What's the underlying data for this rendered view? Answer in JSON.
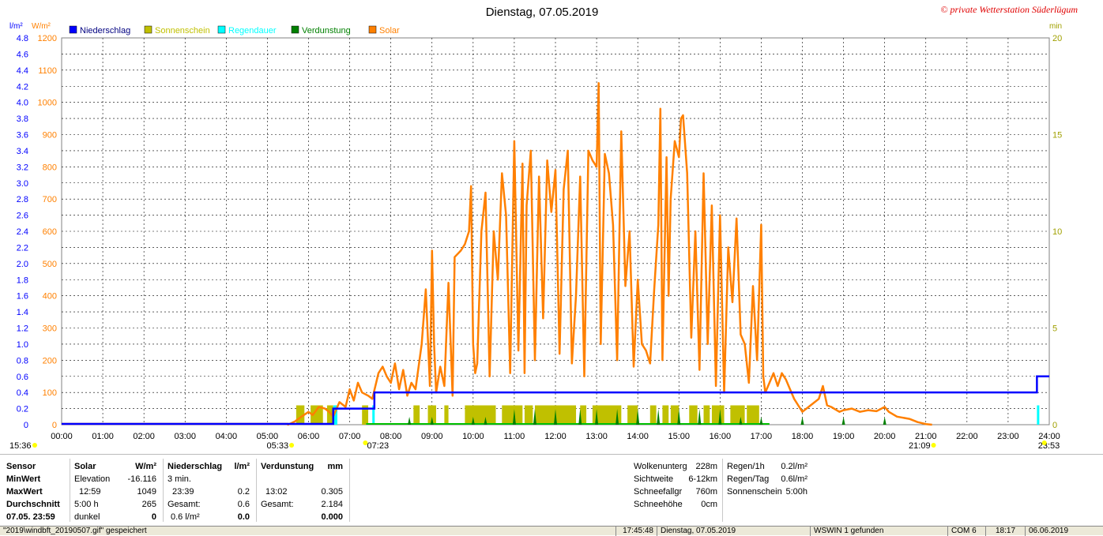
{
  "chart_data": {
    "type": "line",
    "title": "Dienstag, 07.05.2019",
    "copyright": "© private Wetterstation Süderlügum",
    "unit_labels": {
      "left_mm": "l/m²",
      "left_solar": "W/m²",
      "right": "min"
    },
    "left_axis_mm": {
      "min": 0,
      "max": 4.8,
      "ticks": [
        "0",
        "0.2",
        "0.4",
        "0.6",
        "0.8",
        "1.0",
        "1.2",
        "1.4",
        "1.6",
        "1.8",
        "2.0",
        "2.2",
        "2.4",
        "2.6",
        "2.8",
        "3.0",
        "3.2",
        "3.4",
        "3.6",
        "3.8",
        "4.0",
        "4.2",
        "4.4",
        "4.6",
        "4.8"
      ]
    },
    "left_axis_solar": {
      "min": 0,
      "max": 1200,
      "ticks": [
        "0",
        "100",
        "200",
        "300",
        "400",
        "500",
        "600",
        "700",
        "800",
        "900",
        "1000",
        "1100",
        "1200"
      ]
    },
    "right_axis_min": {
      "min": 0,
      "max": 20,
      "ticks": [
        "0",
        "5",
        "10",
        "15",
        "20"
      ]
    },
    "x_ticks": [
      "00:00",
      "01:00",
      "02:00",
      "03:00",
      "04:00",
      "05:00",
      "06:00",
      "07:00",
      "08:00",
      "09:00",
      "10:00",
      "11:00",
      "12:00",
      "13:00",
      "14:00",
      "15:00",
      "16:00",
      "17:00",
      "18:00",
      "19:00",
      "20:00",
      "21:00",
      "22:00",
      "23:00",
      "24:00"
    ],
    "x_annotations": [
      "15:36",
      "05:33",
      "07:23",
      "21:09",
      "23:53"
    ],
    "legend": [
      {
        "name": "Niederschlag",
        "color": "#0000ff"
      },
      {
        "name": "Sonnenschein",
        "color": "#c0c000"
      },
      {
        "name": "Regendauer",
        "color": "#00ffff"
      },
      {
        "name": "Verdunstung",
        "color": "#008000"
      },
      {
        "name": "Solar",
        "color": "#ff8000"
      }
    ],
    "legend_colors": {
      "solar": "#ff8000",
      "rain": "#0000ff",
      "sunshine": "#c0c000",
      "rainDuration": "#00ffff",
      "evap": "#008000",
      "dry": "#00c000"
    },
    "series": [
      {
        "name": "Solar",
        "points": [
          [
            5.5,
            0
          ],
          [
            5.67,
            10
          ],
          [
            5.83,
            25
          ],
          [
            6.0,
            40
          ],
          [
            6.1,
            30
          ],
          [
            6.25,
            55
          ],
          [
            6.4,
            50
          ],
          [
            6.5,
            40
          ],
          [
            6.6,
            25
          ],
          [
            6.75,
            70
          ],
          [
            6.9,
            55
          ],
          [
            7.0,
            110
          ],
          [
            7.1,
            75
          ],
          [
            7.2,
            130
          ],
          [
            7.3,
            100
          ],
          [
            7.45,
            90
          ],
          [
            7.55,
            80
          ],
          [
            7.7,
            160
          ],
          [
            7.8,
            180
          ],
          [
            7.9,
            150
          ],
          [
            8.0,
            130
          ],
          [
            8.1,
            190
          ],
          [
            8.2,
            110
          ],
          [
            8.3,
            170
          ],
          [
            8.4,
            90
          ],
          [
            8.5,
            130
          ],
          [
            8.6,
            110
          ],
          [
            8.75,
            250
          ],
          [
            8.85,
            420
          ],
          [
            8.95,
            120
          ],
          [
            9.0,
            540
          ],
          [
            9.05,
            250
          ],
          [
            9.1,
            100
          ],
          [
            9.2,
            180
          ],
          [
            9.3,
            120
          ],
          [
            9.4,
            440
          ],
          [
            9.5,
            90
          ],
          [
            9.55,
            520
          ],
          [
            9.7,
            540
          ],
          [
            9.8,
            560
          ],
          [
            9.9,
            600
          ],
          [
            9.95,
            740
          ],
          [
            10.0,
            250
          ],
          [
            10.05,
            160
          ],
          [
            10.1,
            190
          ],
          [
            10.2,
            600
          ],
          [
            10.3,
            720
          ],
          [
            10.4,
            150
          ],
          [
            10.5,
            600
          ],
          [
            10.6,
            450
          ],
          [
            10.7,
            780
          ],
          [
            10.8,
            650
          ],
          [
            10.9,
            160
          ],
          [
            11.0,
            880
          ],
          [
            11.1,
            230
          ],
          [
            11.2,
            810
          ],
          [
            11.25,
            160
          ],
          [
            11.3,
            680
          ],
          [
            11.4,
            850
          ],
          [
            11.5,
            200
          ],
          [
            11.6,
            770
          ],
          [
            11.7,
            330
          ],
          [
            11.8,
            820
          ],
          [
            11.9,
            660
          ],
          [
            12.0,
            790
          ],
          [
            12.1,
            220
          ],
          [
            12.2,
            730
          ],
          [
            12.3,
            850
          ],
          [
            12.4,
            190
          ],
          [
            12.5,
            400
          ],
          [
            12.6,
            770
          ],
          [
            12.7,
            150
          ],
          [
            12.8,
            850
          ],
          [
            12.9,
            820
          ],
          [
            13.0,
            800
          ],
          [
            13.05,
            1060
          ],
          [
            13.1,
            250
          ],
          [
            13.2,
            840
          ],
          [
            13.3,
            780
          ],
          [
            13.4,
            620
          ],
          [
            13.5,
            200
          ],
          [
            13.6,
            910
          ],
          [
            13.7,
            430
          ],
          [
            13.8,
            600
          ],
          [
            13.9,
            180
          ],
          [
            14.0,
            450
          ],
          [
            14.1,
            250
          ],
          [
            14.2,
            230
          ],
          [
            14.3,
            190
          ],
          [
            14.4,
            420
          ],
          [
            14.5,
            620
          ],
          [
            14.55,
            980
          ],
          [
            14.6,
            200
          ],
          [
            14.7,
            830
          ],
          [
            14.75,
            400
          ],
          [
            14.8,
            700
          ],
          [
            14.9,
            880
          ],
          [
            15.0,
            830
          ],
          [
            15.05,
            950
          ],
          [
            15.1,
            960
          ],
          [
            15.2,
            780
          ],
          [
            15.3,
            270
          ],
          [
            15.4,
            600
          ],
          [
            15.5,
            170
          ],
          [
            15.6,
            780
          ],
          [
            15.7,
            250
          ],
          [
            15.8,
            680
          ],
          [
            15.9,
            120
          ],
          [
            16.0,
            650
          ],
          [
            16.1,
            100
          ],
          [
            16.2,
            550
          ],
          [
            16.3,
            380
          ],
          [
            16.4,
            640
          ],
          [
            16.5,
            280
          ],
          [
            16.6,
            250
          ],
          [
            16.7,
            130
          ],
          [
            16.8,
            430
          ],
          [
            16.9,
            200
          ],
          [
            17.0,
            620
          ],
          [
            17.05,
            150
          ],
          [
            17.1,
            100
          ],
          [
            17.3,
            160
          ],
          [
            17.4,
            120
          ],
          [
            17.5,
            160
          ],
          [
            17.6,
            140
          ],
          [
            17.7,
            110
          ],
          [
            17.8,
            80
          ],
          [
            17.9,
            60
          ],
          [
            18.0,
            40
          ],
          [
            18.2,
            60
          ],
          [
            18.4,
            80
          ],
          [
            18.5,
            120
          ],
          [
            18.6,
            60
          ],
          [
            18.7,
            55
          ],
          [
            18.9,
            40
          ],
          [
            19.0,
            45
          ],
          [
            19.2,
            50
          ],
          [
            19.4,
            40
          ],
          [
            19.6,
            45
          ],
          [
            19.8,
            42
          ],
          [
            20.0,
            55
          ],
          [
            20.1,
            40
          ],
          [
            20.3,
            25
          ],
          [
            20.6,
            18
          ],
          [
            20.8,
            8
          ],
          [
            21.0,
            2
          ],
          [
            21.15,
            0
          ]
        ]
      },
      {
        "name": "Niederschlag",
        "steps": [
          [
            0,
            0
          ],
          [
            6.6,
            0.2
          ],
          [
            7.6,
            0.4
          ],
          [
            23.7,
            0.6
          ]
        ]
      },
      {
        "name": "Sonnenschein",
        "bars": [
          [
            5.7,
            5.9
          ],
          [
            6.05,
            6.35
          ],
          [
            6.45,
            6.6
          ],
          [
            7.3,
            7.45
          ],
          [
            8.55,
            8.7
          ],
          [
            8.9,
            9.1
          ],
          [
            9.3,
            9.4
          ],
          [
            9.8,
            10.55
          ],
          [
            10.7,
            11.2
          ],
          [
            11.25,
            11.45
          ],
          [
            11.5,
            12.5
          ],
          [
            12.6,
            12.75
          ],
          [
            12.9,
            13.6
          ],
          [
            13.75,
            14.0
          ],
          [
            14.3,
            14.45
          ],
          [
            14.6,
            14.75
          ],
          [
            14.8,
            15.0
          ],
          [
            15.25,
            15.45
          ],
          [
            15.6,
            15.75
          ],
          [
            15.8,
            16.1
          ],
          [
            16.25,
            16.6
          ],
          [
            16.65,
            16.95
          ]
        ],
        "level_min": 1
      },
      {
        "name": "Regendauer",
        "bars": [
          [
            6.6,
            6.7
          ],
          [
            7.55,
            7.6
          ],
          [
            23.7,
            23.75
          ]
        ],
        "level_min": 1
      }
    ]
  },
  "info": {
    "sensor": {
      "header": "Sensor",
      "rows": [
        "MinWert",
        "MaxWert",
        "Durchschnitt",
        "07.05. 23:59"
      ]
    },
    "solar": {
      "header": "Solar",
      "unit": "W/m²",
      "rows": [
        [
          "Elevation",
          "-16.116"
        ],
        [
          "12:59",
          "1049"
        ],
        [
          "5:00 h",
          "265"
        ],
        [
          "dunkel",
          "0"
        ]
      ]
    },
    "niederschlag": {
      "header": "Niederschlag",
      "unit": "l/m²",
      "rows": [
        [
          "3 min.",
          ""
        ],
        [
          "23:39",
          "0.2"
        ],
        [
          "Gesamt:",
          "0.6"
        ],
        [
          "0.6 l/m²",
          "0.0"
        ]
      ]
    },
    "verdunstung": {
      "header": "Verdunstung",
      "unit": "mm",
      "rows": [
        [
          "",
          ""
        ],
        [
          "13:02",
          "0.305"
        ],
        [
          "Gesamt:",
          "2.184"
        ],
        [
          "",
          "0.000"
        ]
      ]
    },
    "wetter": {
      "rows": [
        [
          "Wolkenunterg",
          "228m"
        ],
        [
          "Sichtweite",
          "6-12km"
        ],
        [
          "Schneefallgr",
          "760m"
        ],
        [
          "Schneehöhe",
          "0cm"
        ]
      ]
    },
    "regen": {
      "rows": [
        [
          "Regen/1h",
          "0.2l/m²"
        ],
        [
          "Regen/Tag",
          "0.6l/m²"
        ],
        [
          "Sonnenschein",
          "5:00h"
        ]
      ]
    }
  },
  "status_bar": {
    "message": "\"2019\\windbft_20190507.gif\" gespeichert",
    "time": "17:45:48",
    "date": "Dienstag, 07.05.2019",
    "device": "WSWIN 1 gefunden",
    "port": "COM 6",
    "clock": "18:17",
    "today": "06.06.2019"
  }
}
